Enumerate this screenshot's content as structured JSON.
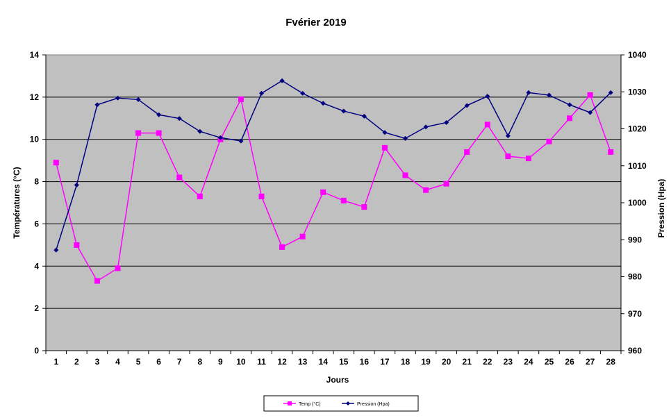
{
  "chart_data": {
    "type": "line",
    "title": "Fvérier 2019",
    "xlabel": "Jours",
    "ylabel": "Températures (°C)",
    "y2label": "Pression (Hpa)",
    "categories": [
      1,
      2,
      3,
      4,
      5,
      6,
      7,
      8,
      9,
      10,
      11,
      12,
      13,
      14,
      15,
      16,
      17,
      18,
      19,
      20,
      21,
      22,
      23,
      24,
      25,
      26,
      27,
      28
    ],
    "ylim": [
      0,
      14
    ],
    "y2lim": [
      960,
      1040
    ],
    "yticks": [
      0,
      2,
      4,
      6,
      8,
      10,
      12,
      14
    ],
    "y2ticks": [
      960,
      970,
      980,
      990,
      1000,
      1010,
      1020,
      1030,
      1040
    ],
    "grid": "horizontal",
    "plot_background": "#c0c0c0",
    "legend_position": "bottom-center",
    "series": [
      {
        "name": "Temp (°C)",
        "axis": "left",
        "color": "#ff00ff",
        "marker": "square",
        "values": [
          8.9,
          5.0,
          3.3,
          3.9,
          10.3,
          10.3,
          8.2,
          7.3,
          10.0,
          11.9,
          7.3,
          4.9,
          5.4,
          7.5,
          7.1,
          6.8,
          9.6,
          8.3,
          7.6,
          7.9,
          9.4,
          10.7,
          9.2,
          9.1,
          9.9,
          11.0,
          12.1,
          9.4
        ]
      },
      {
        "name": "Pression (Hpa)",
        "axis": "right",
        "color": "#000080",
        "marker": "diamond",
        "values": [
          987.2,
          1004.8,
          1026.5,
          1028.3,
          1027.9,
          1023.8,
          1022.8,
          1019.3,
          1017.6,
          1016.7,
          1029.6,
          1033.0,
          1029.6,
          1026.9,
          1024.8,
          1023.4,
          1019.0,
          1017.4,
          1020.5,
          1021.7,
          1026.3,
          1028.8,
          1018.1,
          1029.8,
          1029.1,
          1026.5,
          1024.4,
          1029.8
        ]
      }
    ]
  }
}
